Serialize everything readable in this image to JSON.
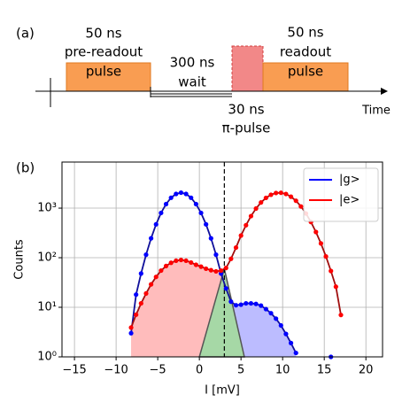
{
  "timing_diagram": {
    "label": "(a)",
    "axis_label": "Time",
    "pre_readout": {
      "duration": "50 ns",
      "name": "pre-readout",
      "box": "pulse"
    },
    "wait": {
      "duration": "300 ns",
      "name": "wait"
    },
    "pi_pulse": {
      "duration": "30 ns",
      "name": "π-pulse"
    },
    "readout": {
      "duration": "50 ns",
      "name": "readout",
      "box": "pulse"
    }
  },
  "chart_data": {
    "type": "scatter",
    "panel_label": "(b)",
    "xlabel": "I [mV]",
    "ylabel": "Counts",
    "log_y": true,
    "grid": true,
    "legend": "upper right",
    "threshold": 3,
    "x": [
      -8.2,
      -7.6,
      -7.0,
      -6.4,
      -5.8,
      -5.2,
      -4.6,
      -4.0,
      -3.4,
      -2.8,
      -2.2,
      -1.6,
      -1.0,
      -0.4,
      0.2,
      0.8,
      1.4,
      2.0,
      2.6,
      3.2,
      3.8,
      4.4,
      5.0,
      5.6,
      6.2,
      6.8,
      7.4,
      8.0,
      8.6,
      9.2,
      9.8,
      10.4,
      11.0,
      11.6,
      12.2,
      12.8,
      13.4,
      14.0,
      14.6,
      15.2,
      15.8,
      16.4,
      17.0
    ],
    "series": [
      {
        "name": "|g>",
        "color": "#0000ff",
        "line_color": "#10109a",
        "fill_color": "#bcbcff",
        "fill_side": "right",
        "values": [
          3,
          18,
          48,
          115,
          246,
          471,
          800,
          1206,
          1620,
          1933,
          2050,
          1933,
          1620,
          1206,
          800,
          471,
          246,
          115,
          48,
          24,
          13,
          11,
          11.3,
          12,
          12,
          11.7,
          10.8,
          9.2,
          7.6,
          5.9,
          4.3,
          2.9,
          1.9,
          1.2,
          null,
          null,
          null,
          null,
          null,
          null,
          1,
          null,
          null
        ]
      },
      {
        "name": "|e>",
        "color": "#ff0000",
        "line_color": "#a00e0e",
        "fill_color": "#ffbcbc",
        "fill_side": "left",
        "values": [
          3.9,
          7.1,
          12,
          19,
          29,
          41,
          55,
          68,
          79,
          87,
          90,
          87,
          80,
          72,
          66,
          60,
          56,
          53,
          55,
          62,
          95,
          160,
          280,
          452,
          690,
          980,
          1300,
          1610,
          1860,
          2020,
          2040,
          1930,
          1700,
          1410,
          1080,
          780,
          525,
          330,
          194,
          106,
          54,
          26,
          7
        ]
      }
    ],
    "overlap": {
      "x": [
        0,
        3,
        5.4
      ],
      "values": [
        1,
        60,
        1
      ],
      "color": "#a6d8a6"
    },
    "xlim": [
      -16.5,
      22
    ],
    "ylim": [
      1,
      8500
    ],
    "xticks": [
      {
        "value": -15,
        "label": "−15"
      },
      {
        "value": -10,
        "label": "−10"
      },
      {
        "value": -5,
        "label": "−5"
      },
      0,
      5,
      10,
      15,
      20
    ],
    "yticks": [
      {
        "value": 1,
        "label": "10⁰"
      },
      {
        "value": 10,
        "label": "10¹"
      },
      {
        "value": 100,
        "label": "10²"
      },
      {
        "value": 1000,
        "label": "10³"
      }
    ]
  }
}
